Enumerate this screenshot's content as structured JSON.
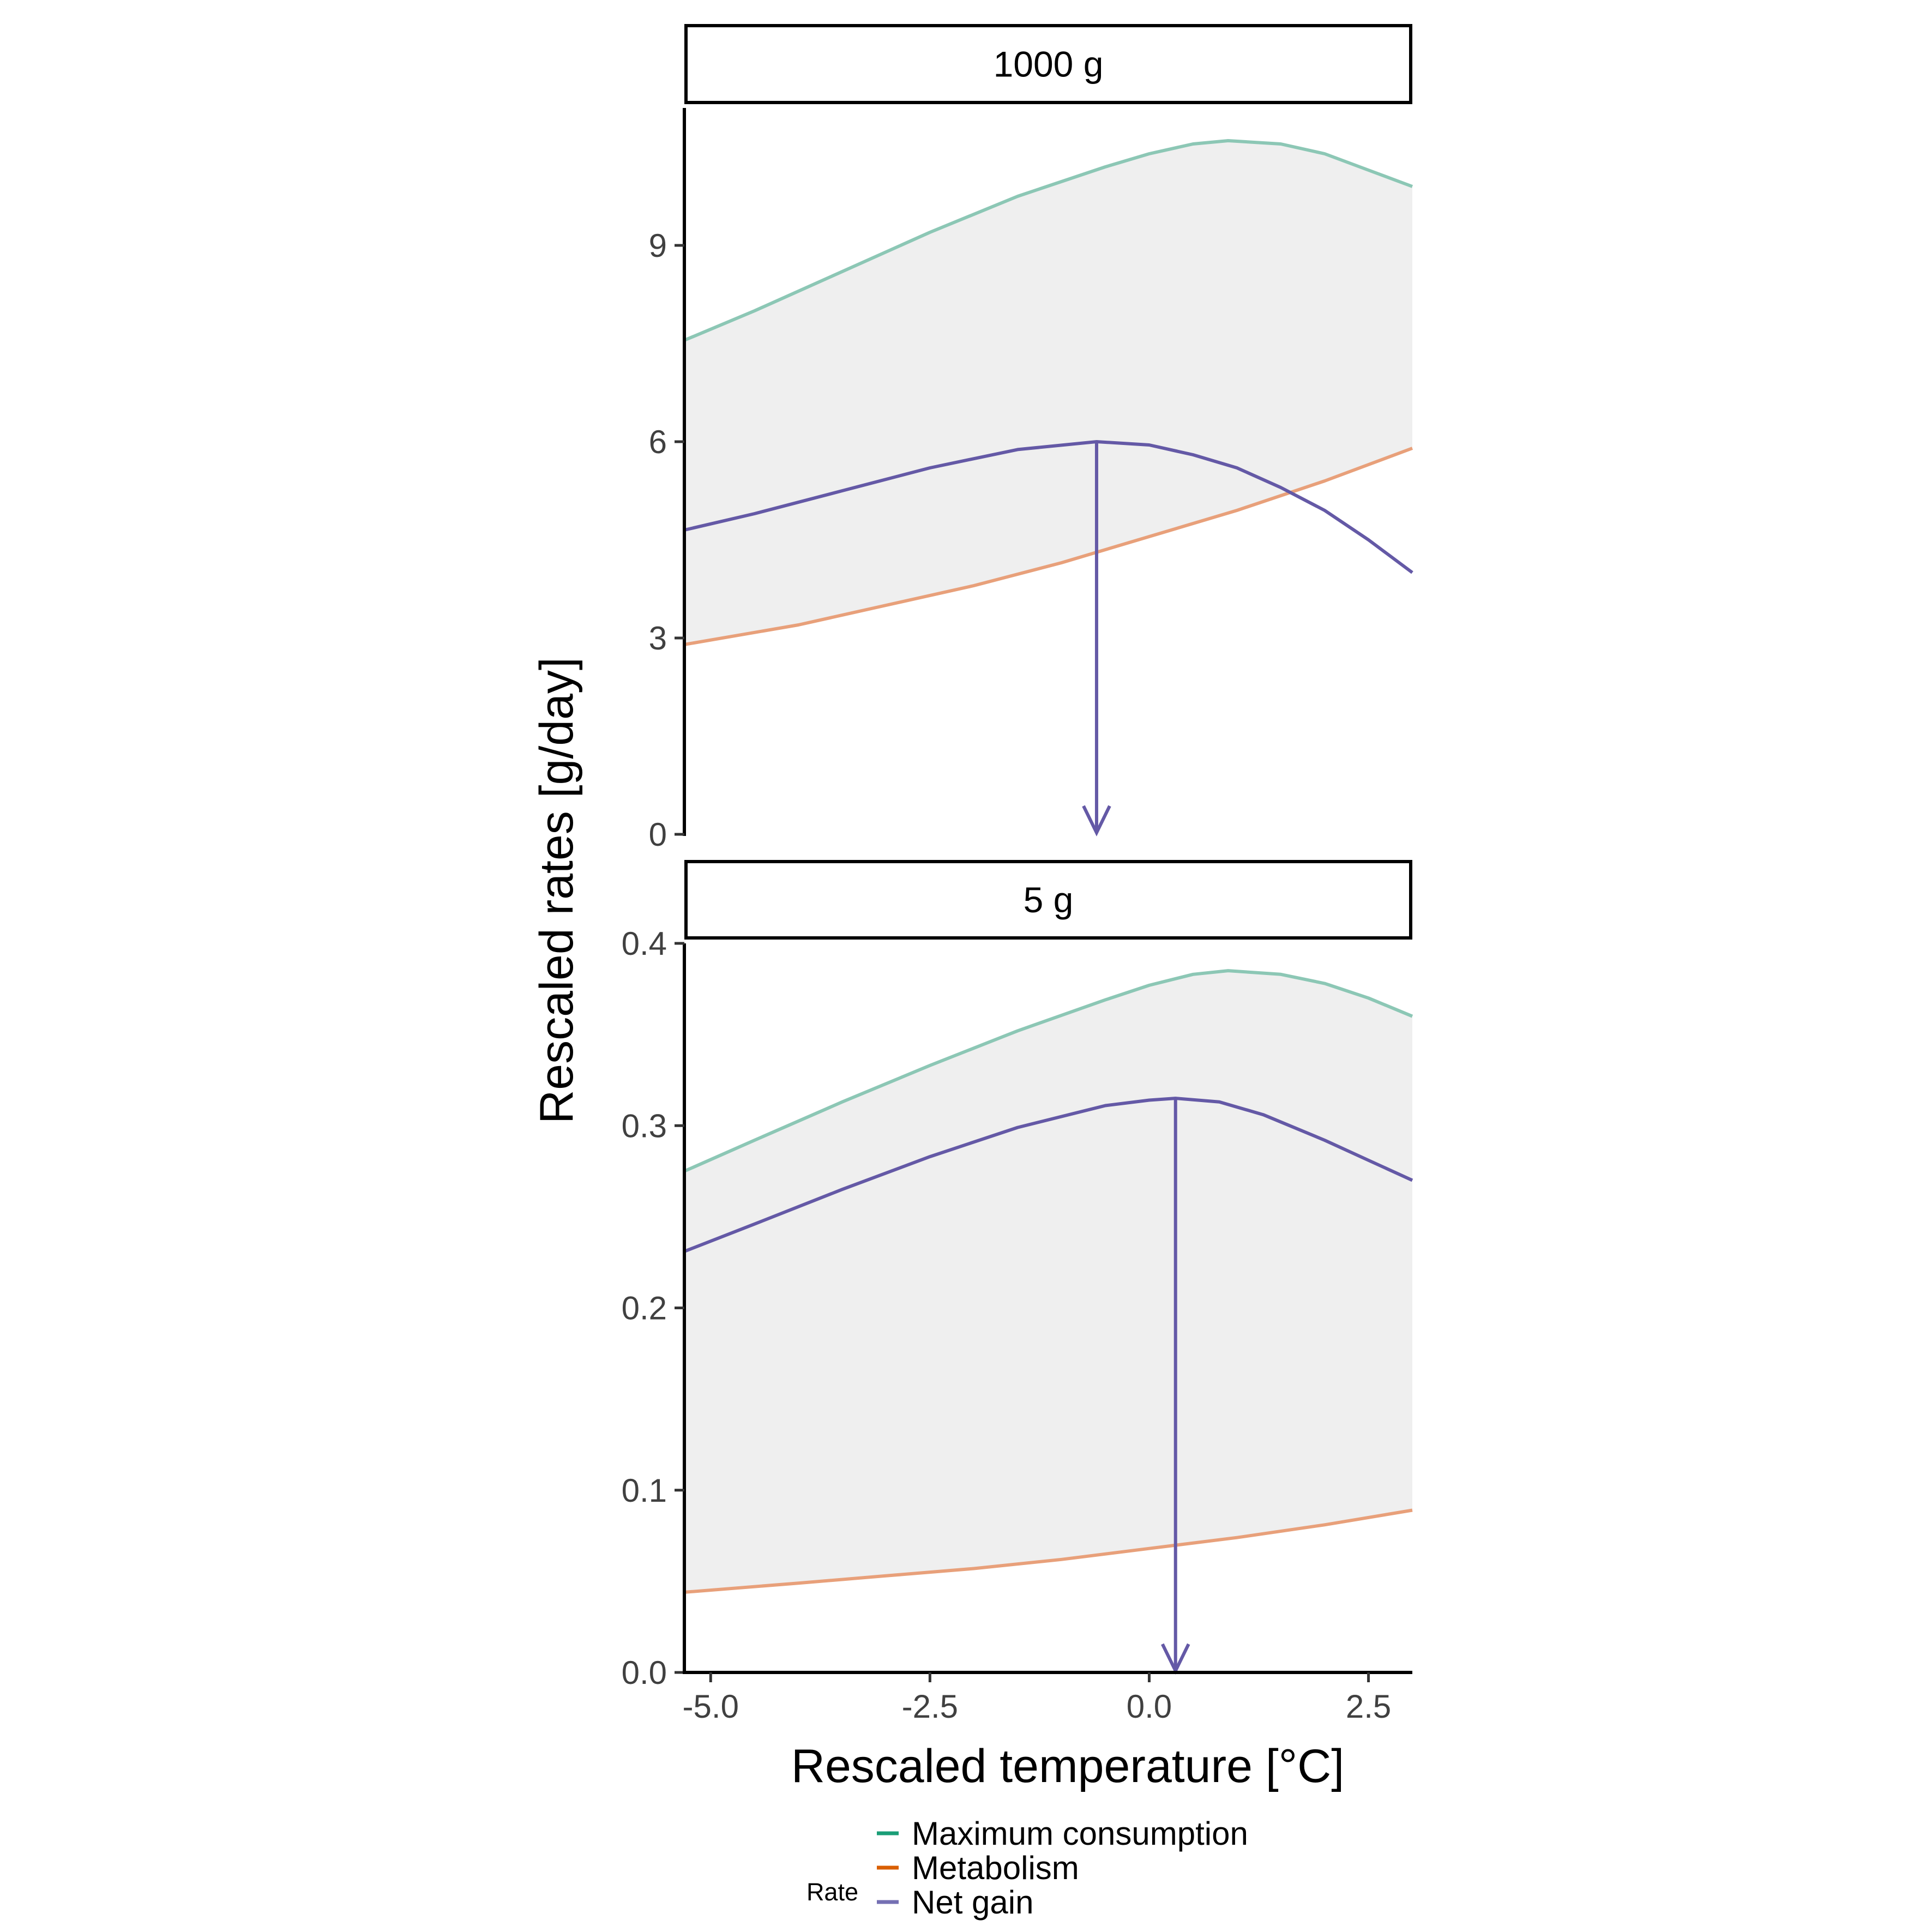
{
  "chart_data": {
    "type": "line",
    "xlabel": "Rescaled temperature [°C]",
    "ylabel": "Rescaled rates [g/day]",
    "xlim": [
      -5.3,
      3.0
    ],
    "x_ticks": [
      -5.0,
      -2.5,
      0.0,
      2.5
    ],
    "x_tick_labels": [
      "-5.0",
      "-2.5",
      "0.0",
      "2.5"
    ],
    "grid": false,
    "legend": {
      "title": "Rate",
      "position": "bottom",
      "entries": [
        {
          "label": "Maximum consumption",
          "color": "#1B9E77"
        },
        {
          "label": "Metabolism",
          "color": "#D95F02"
        },
        {
          "label": "Net gain",
          "color": "#7570B3"
        }
      ]
    },
    "panels": [
      {
        "strip": "1000 g",
        "ylim": [
          0,
          11.1
        ],
        "y_ticks": [
          0,
          3,
          6,
          9
        ],
        "y_tick_labels": [
          "0",
          "3",
          "6",
          "9"
        ],
        "series": [
          {
            "name": "Maximum consumption",
            "color": "#8CC7B5",
            "x": [
              -5.3,
              -4.5,
              -3.5,
              -2.5,
              -1.5,
              -0.5,
              0.0,
              0.5,
              0.9,
              1.5,
              2.0,
              2.5,
              3.0
            ],
            "values": [
              7.55,
              8.0,
              8.6,
              9.2,
              9.75,
              10.2,
              10.4,
              10.55,
              10.6,
              10.55,
              10.4,
              10.15,
              9.9
            ]
          },
          {
            "name": "Metabolism",
            "color": "#E8A07A",
            "x": [
              -5.3,
              -4.0,
              -3.0,
              -2.0,
              -1.0,
              0.0,
              1.0,
              2.0,
              3.0
            ],
            "values": [
              2.9,
              3.2,
              3.5,
              3.8,
              4.15,
              4.55,
              4.95,
              5.4,
              5.9
            ]
          },
          {
            "name": "Net gain",
            "color": "#6459A6",
            "x": [
              -5.3,
              -4.5,
              -3.5,
              -2.5,
              -1.5,
              -0.6,
              0.0,
              0.5,
              1.0,
              1.5,
              2.0,
              2.5,
              3.0
            ],
            "values": [
              4.65,
              4.9,
              5.25,
              5.6,
              5.88,
              6.0,
              5.95,
              5.8,
              5.6,
              5.3,
              4.95,
              4.5,
              4.0
            ]
          }
        ],
        "optimum": {
          "x": -0.6,
          "y": 6.0
        }
      },
      {
        "strip": "5 g",
        "ylim": [
          0,
          0.4
        ],
        "y_ticks": [
          0.0,
          0.1,
          0.2,
          0.3,
          0.4
        ],
        "y_tick_labels": [
          "0.0",
          "0.1",
          "0.2",
          "0.3",
          "0.4"
        ],
        "series": [
          {
            "name": "Maximum consumption",
            "color": "#8CC7B5",
            "x": [
              -5.3,
              -4.5,
              -3.5,
              -2.5,
              -1.5,
              -0.5,
              0.0,
              0.5,
              0.9,
              1.5,
              2.0,
              2.5,
              3.0
            ],
            "values": [
              0.275,
              0.292,
              0.313,
              0.333,
              0.352,
              0.369,
              0.377,
              0.383,
              0.385,
              0.383,
              0.378,
              0.37,
              0.36
            ]
          },
          {
            "name": "Metabolism",
            "color": "#E8A07A",
            "x": [
              -5.3,
              -4.0,
              -3.0,
              -2.0,
              -1.0,
              0.0,
              1.0,
              2.0,
              3.0
            ],
            "values": [
              0.044,
              0.049,
              0.053,
              0.057,
              0.062,
              0.068,
              0.074,
              0.081,
              0.089
            ]
          },
          {
            "name": "Net gain",
            "color": "#6459A6",
            "x": [
              -5.3,
              -4.5,
              -3.5,
              -2.5,
              -1.5,
              -0.5,
              0.0,
              0.3,
              0.8,
              1.3,
              2.0,
              2.5,
              3.0
            ],
            "values": [
              0.231,
              0.246,
              0.265,
              0.283,
              0.299,
              0.311,
              0.314,
              0.315,
              0.313,
              0.306,
              0.292,
              0.281,
              0.27
            ]
          }
        ],
        "optimum": {
          "x": 0.3,
          "y": 0.315
        }
      }
    ]
  }
}
